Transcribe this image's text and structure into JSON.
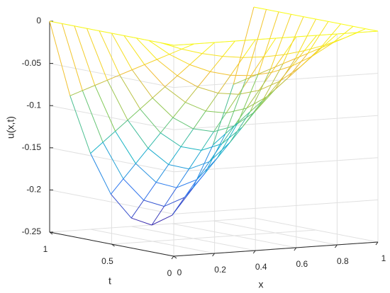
{
  "chart_data": {
    "type": "mesh",
    "xlabel": "x",
    "ylabel": "t",
    "zlabel": "u(x,t)",
    "x": [
      0,
      0.1,
      0.2,
      0.3,
      0.4,
      0.5,
      0.6,
      0.7,
      0.8,
      0.9,
      1
    ],
    "y": [
      0,
      0.1,
      0.2,
      0.3,
      0.4,
      0.5,
      0.6,
      0.7,
      0.8,
      0.9,
      1
    ],
    "z": [
      [
        0,
        0,
        0,
        0,
        0,
        0,
        0,
        0,
        0,
        0,
        0
      ],
      [
        0,
        -0.009,
        -0.016,
        -0.021,
        -0.024,
        -0.025,
        -0.024,
        -0.021,
        -0.016,
        -0.009,
        0
      ],
      [
        0,
        -0.018,
        -0.032,
        -0.042,
        -0.048,
        -0.05,
        -0.048,
        -0.042,
        -0.032,
        -0.018,
        0
      ],
      [
        0,
        -0.027,
        -0.048,
        -0.063,
        -0.072,
        -0.075,
        -0.072,
        -0.063,
        -0.048,
        -0.027,
        0
      ],
      [
        0,
        -0.036,
        -0.064,
        -0.084,
        -0.096,
        -0.1,
        -0.096,
        -0.084,
        -0.064,
        -0.036,
        0
      ],
      [
        0,
        -0.045,
        -0.08,
        -0.105,
        -0.12,
        -0.125,
        -0.12,
        -0.105,
        -0.08,
        -0.045,
        0
      ],
      [
        0,
        -0.054,
        -0.096,
        -0.126,
        -0.144,
        -0.15,
        -0.144,
        -0.126,
        -0.096,
        -0.054,
        0
      ],
      [
        0,
        -0.063,
        -0.112,
        -0.147,
        -0.168,
        -0.175,
        -0.168,
        -0.147,
        -0.112,
        -0.063,
        0
      ],
      [
        0,
        -0.072,
        -0.128,
        -0.168,
        -0.192,
        -0.2,
        -0.192,
        -0.168,
        -0.128,
        -0.072,
        0
      ],
      [
        0,
        -0.081,
        -0.144,
        -0.189,
        -0.216,
        -0.225,
        -0.216,
        -0.189,
        -0.144,
        -0.081,
        0
      ],
      [
        0,
        -0.09,
        -0.16,
        -0.21,
        -0.24,
        -0.25,
        -0.24,
        -0.21,
        -0.16,
        -0.09,
        0
      ]
    ],
    "xlim": [
      0,
      1
    ],
    "ylim": [
      0,
      1
    ],
    "zlim": [
      -0.25,
      0
    ],
    "xticks": [
      0,
      0.2,
      0.4,
      0.6,
      0.8,
      1
    ],
    "yticks": [
      0,
      0.5,
      1
    ],
    "zticks": [
      -0.25,
      -0.2,
      -0.15,
      -0.1,
      -0.05,
      0
    ],
    "colormap": "parula",
    "grid": true
  }
}
